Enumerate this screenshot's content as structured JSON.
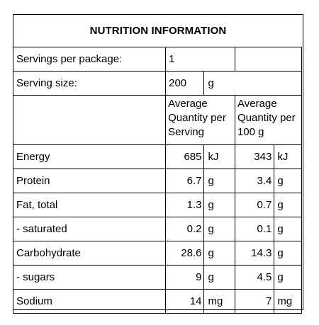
{
  "title": "NUTRITION INFORMATION",
  "servings_per_package": {
    "label": "Servings per package:",
    "value": "1"
  },
  "serving_size": {
    "label": "Serving size:",
    "value": "200",
    "unit": "g"
  },
  "headers": {
    "per_serving": "Average Quantity per Serving",
    "per_100g": "Average Quantity per 100 g"
  },
  "rows": [
    {
      "label": "Energy",
      "serving": "685",
      "serving_unit": "kJ",
      "per100": "343",
      "per100_unit": "kJ"
    },
    {
      "label": "Protein",
      "serving": "6.7",
      "serving_unit": "g",
      "per100": "3.4",
      "per100_unit": "g"
    },
    {
      "label": "Fat, total",
      "serving": "1.3",
      "serving_unit": "g",
      "per100": "0.7",
      "per100_unit": "g"
    },
    {
      "label": "- saturated",
      "serving": "0.2",
      "serving_unit": "g",
      "per100": "0.1",
      "per100_unit": "g"
    },
    {
      "label": "Carbohydrate",
      "serving": "28.6",
      "serving_unit": "g",
      "per100": "14.3",
      "per100_unit": "g"
    },
    {
      "label": "- sugars",
      "serving": "9",
      "serving_unit": "g",
      "per100": "4.5",
      "per100_unit": "g"
    },
    {
      "label": "Sodium",
      "serving": "14",
      "serving_unit": "mg",
      "per100": "7",
      "per100_unit": "mg"
    }
  ]
}
